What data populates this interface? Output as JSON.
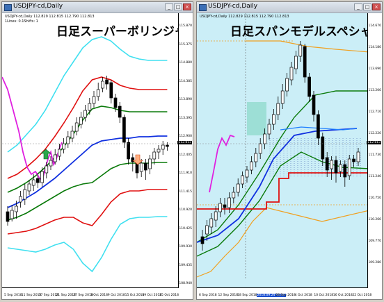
{
  "left": {
    "window_title": "USDJPY-cd,Daily",
    "symbol_info": "USDJPY-cd,Daily  112.829 112.815 112.790 112.813",
    "indicator_info": "1Lines: 0.1Shifts: 1",
    "overlay_title": "日足スーパーボリンジャー",
    "price_tag": "112.813",
    "y_labels": [
      "115.870",
      "115.375",
      "114.880",
      "114.385",
      "113.890",
      "113.395",
      "112.900",
      "112.405",
      "111.910",
      "111.415",
      "110.920",
      "110.425",
      "109.930",
      "109.435",
      "108.940"
    ],
    "x_labels": [
      "5 Sep 2018",
      "11 Sep 2018",
      "17 Sep 2018",
      "21 Sep 2018",
      "27 Sep 2018",
      "3 Oct 2018",
      "9 Oct 2018",
      "15 Oct 2018",
      "19 Oct 2018",
      "25 Oct 2018"
    ]
  },
  "right": {
    "window_title": "USDJPY-cd,Daily",
    "symbol_info": "USDJPY-cd,Daily  112.829 112.815 112.790 112.813",
    "overlay_title": "日足スパンモデルスペシャル",
    "price_tag": "112.813",
    "y_labels": [
      "114.670",
      "114.180",
      "113.690",
      "113.200",
      "112.710",
      "112.220",
      "111.730",
      "111.240",
      "110.750",
      "110.260",
      "109.770",
      "109.280"
    ],
    "x_labels": [
      "6 Sep 2018",
      "12 Sep 2018",
      "18 Sep 2018",
      "24 Sep 2018",
      "28 Sep 2018",
      "4 Oct 2018",
      "10 Oct 2018",
      "16 Oct 2018",
      "22 Oct 2018"
    ],
    "x_highlight_index": 3,
    "x_highlight_label": "2018.09.24 00:00"
  },
  "colors": {
    "cyan": "#40e0f0",
    "red": "#e01010",
    "green": "#0a7a0a",
    "blue": "#1030e0",
    "magenta": "#e020e0",
    "orange": "#f0a020",
    "candle_up": "#ffffff",
    "candle_down": "#000000"
  }
}
